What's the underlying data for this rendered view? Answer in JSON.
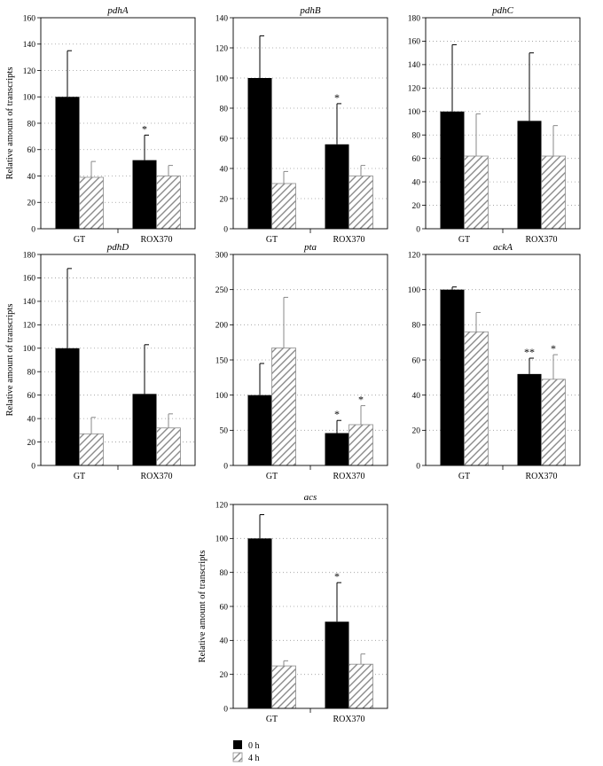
{
  "figure": {
    "legend": [
      {
        "label": "0 h",
        "style": "solid",
        "color": "#000000"
      },
      {
        "label": "4 h",
        "style": "hatched",
        "color": "#8a8a8a"
      }
    ]
  },
  "chart_data": [
    {
      "type": "bar",
      "title": "pdhA",
      "ylabel": "Relative amount of transcripts",
      "categories": [
        "GT",
        "ROX370"
      ],
      "ylim": [
        0,
        160
      ],
      "yticks": [
        0,
        20,
        40,
        60,
        80,
        100,
        120,
        140,
        160
      ],
      "grid": "horizontal-dotted",
      "series": [
        {
          "legend_index": 0,
          "values": [
            100,
            52
          ],
          "errors": [
            35,
            19
          ],
          "annotations": [
            "",
            "*"
          ]
        },
        {
          "legend_index": 1,
          "values": [
            39,
            40
          ],
          "errors": [
            12,
            8
          ],
          "annotations": [
            "",
            ""
          ]
        }
      ]
    },
    {
      "type": "bar",
      "title": "pdhB",
      "ylabel": "",
      "categories": [
        "GT",
        "ROX370"
      ],
      "ylim": [
        0,
        140
      ],
      "yticks": [
        0,
        20,
        40,
        60,
        80,
        100,
        120,
        140
      ],
      "grid": "horizontal-dotted",
      "series": [
        {
          "legend_index": 0,
          "values": [
            100,
            56
          ],
          "errors": [
            28,
            27
          ],
          "annotations": [
            "",
            "*"
          ]
        },
        {
          "legend_index": 1,
          "values": [
            30,
            35
          ],
          "errors": [
            8,
            7
          ],
          "annotations": [
            "",
            ""
          ]
        }
      ]
    },
    {
      "type": "bar",
      "title": "pdhC",
      "ylabel": "",
      "categories": [
        "GT",
        "ROX370"
      ],
      "ylim": [
        0,
        180
      ],
      "yticks": [
        0,
        20,
        40,
        60,
        80,
        100,
        120,
        140,
        160,
        180
      ],
      "grid": "horizontal-dotted",
      "series": [
        {
          "legend_index": 0,
          "values": [
            100,
            92
          ],
          "errors": [
            57,
            58
          ],
          "annotations": [
            "",
            ""
          ]
        },
        {
          "legend_index": 1,
          "values": [
            62,
            62
          ],
          "errors": [
            36,
            26
          ],
          "annotations": [
            "",
            ""
          ]
        }
      ]
    },
    {
      "type": "bar",
      "title": "pdhD",
      "ylabel": "Relative amount of transcripts",
      "categories": [
        "GT",
        "ROX370"
      ],
      "ylim": [
        0,
        180
      ],
      "yticks": [
        0,
        20,
        40,
        60,
        80,
        100,
        120,
        140,
        160,
        180
      ],
      "grid": "horizontal-dotted",
      "series": [
        {
          "legend_index": 0,
          "values": [
            100,
            61
          ],
          "errors": [
            68,
            42
          ],
          "annotations": [
            "",
            ""
          ]
        },
        {
          "legend_index": 1,
          "values": [
            27,
            32
          ],
          "errors": [
            14,
            12
          ],
          "annotations": [
            "",
            ""
          ]
        }
      ]
    },
    {
      "type": "bar",
      "title": "pta",
      "ylabel": "",
      "categories": [
        "GT",
        "ROX370"
      ],
      "ylim": [
        0,
        300
      ],
      "yticks": [
        0,
        50,
        100,
        150,
        200,
        250,
        300
      ],
      "grid": "horizontal-dotted",
      "series": [
        {
          "legend_index": 0,
          "values": [
            100,
            46
          ],
          "errors": [
            45,
            18
          ],
          "annotations": [
            "",
            "*"
          ]
        },
        {
          "legend_index": 1,
          "values": [
            167,
            58
          ],
          "errors": [
            72,
            27
          ],
          "annotations": [
            "",
            "*"
          ]
        }
      ]
    },
    {
      "type": "bar",
      "title": "ackA",
      "ylabel": "",
      "categories": [
        "GT",
        "ROX370"
      ],
      "ylim": [
        0,
        120
      ],
      "yticks": [
        0,
        20,
        40,
        60,
        80,
        100,
        120
      ],
      "grid": "horizontal-dotted",
      "series": [
        {
          "legend_index": 0,
          "values": [
            100,
            52
          ],
          "errors": [
            1.5,
            9
          ],
          "annotations": [
            "",
            "**"
          ]
        },
        {
          "legend_index": 1,
          "values": [
            76,
            49
          ],
          "errors": [
            11,
            14
          ],
          "annotations": [
            "",
            "*"
          ]
        }
      ]
    },
    {
      "type": "bar",
      "title": "acs",
      "ylabel": "Relative amount of transcripts",
      "categories": [
        "GT",
        "ROX370"
      ],
      "ylim": [
        0,
        120
      ],
      "yticks": [
        0,
        20,
        40,
        60,
        80,
        100,
        120
      ],
      "grid": "horizontal-dotted",
      "series": [
        {
          "legend_index": 0,
          "values": [
            100,
            51
          ],
          "errors": [
            14,
            23
          ],
          "annotations": [
            "",
            "*"
          ]
        },
        {
          "legend_index": 1,
          "values": [
            25,
            26
          ],
          "errors": [
            3,
            6
          ],
          "annotations": [
            "",
            ""
          ]
        }
      ]
    }
  ]
}
